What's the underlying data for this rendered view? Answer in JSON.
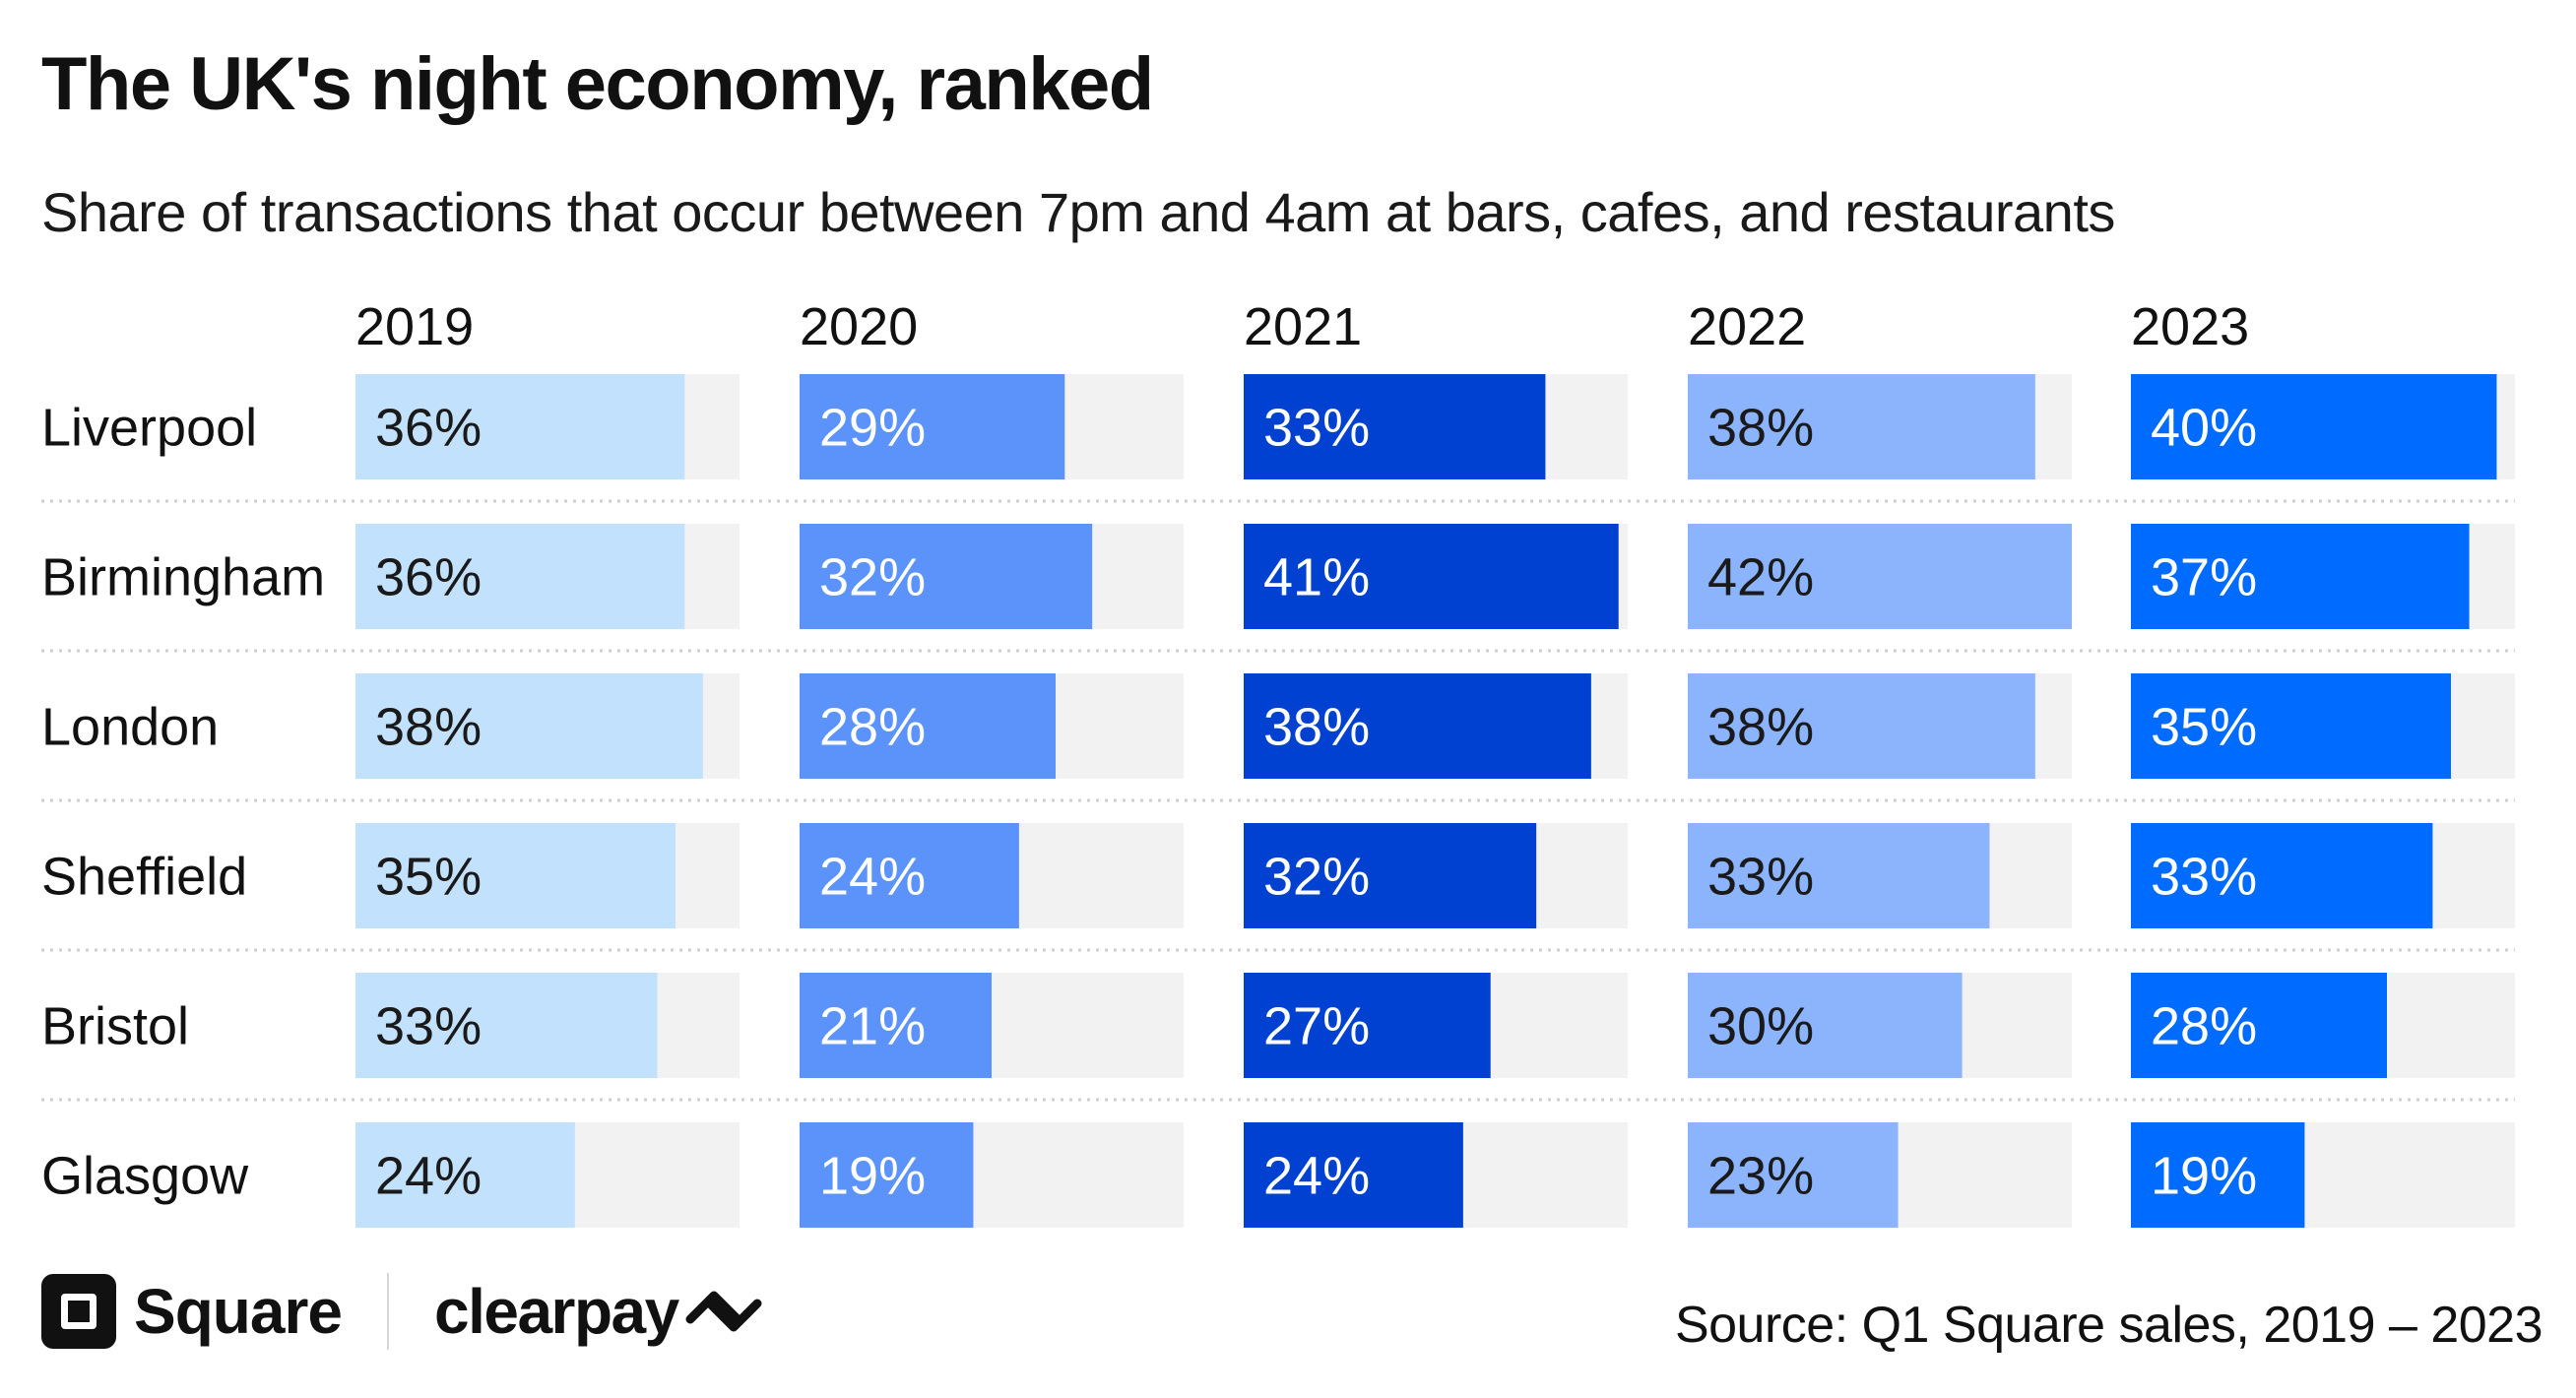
{
  "chart_data": {
    "type": "bar",
    "title": "The UK's night economy, ranked",
    "subtitle": "Share of transactions that occur between 7pm and 4am at bars, cafes, and restaurants",
    "unit": "%",
    "categories": [
      "Liverpool",
      "Birmingham",
      "London",
      "Sheffield",
      "Bristol",
      "Glasgow"
    ],
    "series": [
      {
        "name": "2019",
        "color": "#c2e1fc",
        "values": [
          36,
          36,
          38,
          35,
          33,
          24
        ]
      },
      {
        "name": "2020",
        "color": "#5b93fb",
        "values": [
          29,
          32,
          28,
          24,
          21,
          19
        ]
      },
      {
        "name": "2021",
        "color": "#0041d2",
        "values": [
          33,
          41,
          38,
          32,
          27,
          24
        ]
      },
      {
        "name": "2022",
        "color": "#8bb4fc",
        "values": [
          38,
          42,
          38,
          33,
          30,
          23
        ]
      },
      {
        "name": "2023",
        "color": "#006bff",
        "values": [
          40,
          37,
          35,
          33,
          28,
          19
        ]
      }
    ],
    "xlim": [
      0,
      42
    ],
    "track_color": "#f2f2f2",
    "grid": false
  },
  "footer": {
    "brand_primary": "Square",
    "brand_secondary": "clearpay",
    "source": "Source: Q1 Square sales, 2019 – 2023"
  },
  "icons": {
    "square_logo": "square-logo-icon",
    "clearpay_logo": "clearpay-arrows-icon"
  }
}
